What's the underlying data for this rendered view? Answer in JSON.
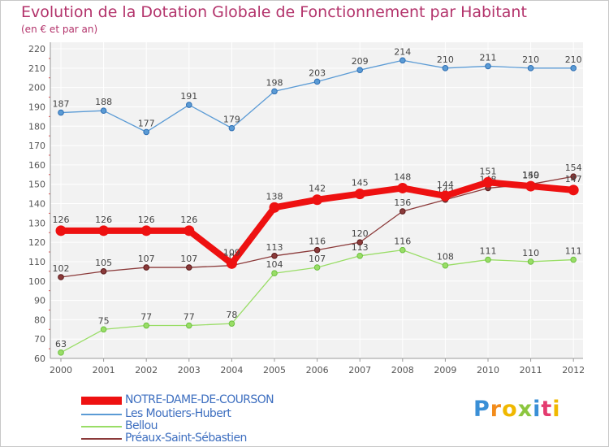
{
  "header": {
    "title": "Evolution de la Dotation Globale de Fonctionnement par Habitant",
    "subtitle": "(en € et par an)"
  },
  "chart_data": {
    "type": "line",
    "title": "Evolution de la Dotation Globale de Fonctionnement par Habitant",
    "subtitle": "(en € et par an)",
    "xlabel": "",
    "ylabel": "",
    "ylim": [
      60,
      220
    ],
    "grid": true,
    "x": [
      "2000",
      "2001",
      "2002",
      "2003",
      "2004",
      "2005",
      "2006",
      "2007",
      "2008",
      "2009",
      "2010",
      "2011",
      "2012"
    ],
    "yticks": [
      60,
      70,
      80,
      90,
      100,
      110,
      120,
      130,
      140,
      150,
      160,
      170,
      180,
      190,
      200,
      210,
      220
    ],
    "series": [
      {
        "name": "Les Moutiers-Hubert",
        "color": "#5b9bd5",
        "values": [
          187,
          188,
          177,
          191,
          179,
          198,
          203,
          209,
          214,
          210,
          211,
          210,
          210
        ]
      },
      {
        "name": "Bellou",
        "color": "#99dd66",
        "values": [
          63,
          75,
          77,
          77,
          78,
          104,
          107,
          113,
          116,
          108,
          111,
          110,
          111
        ]
      },
      {
        "name": "Préaux-Saint-Sébastien",
        "color": "#8b3a3a",
        "values": [
          102,
          105,
          107,
          107,
          108,
          113,
          116,
          120,
          136,
          142,
          148,
          150,
          154
        ]
      },
      {
        "name": "NOTRE-DAME-DE-COURSON",
        "color": "#ee1111",
        "values": [
          126,
          126,
          126,
          126,
          109,
          138,
          142,
          145,
          148,
          144,
          151,
          149,
          147
        ]
      }
    ],
    "legend": [
      "NOTRE-DAME-DE-COURSON",
      "Les Moutiers-Hubert",
      "Bellou",
      "Préaux-Saint-Sébastien"
    ],
    "legend_position": "bottom-left"
  },
  "logo": {
    "text": "Proxiti"
  }
}
